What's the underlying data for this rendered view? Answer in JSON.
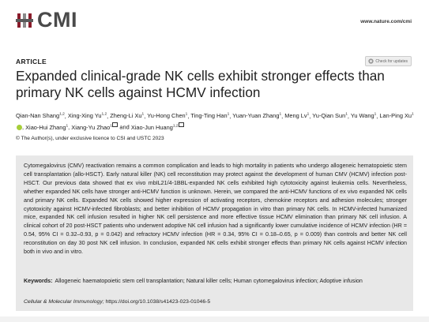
{
  "header": {
    "logo": "CMI",
    "url": "www.nature.com/cmi"
  },
  "article": {
    "label": "ARTICLE",
    "updates_badge": "Check for updates",
    "title": "Expanded clinical-grade NK cells exhibit stronger effects than primary NK cells against HCMV infection",
    "authors": [
      {
        "name": "Qian-Nan Shang",
        "affiliation": "1,2"
      },
      {
        "name": "Xing-Xing Yu",
        "affiliation": "1,2"
      },
      {
        "name": "Zheng-Li Xu",
        "affiliation": "1"
      },
      {
        "name": "Yu-Hong Chen",
        "affiliation": "1"
      },
      {
        "name": "Ting-Ting Han",
        "affiliation": "1"
      },
      {
        "name": "Yuan-Yuan Zhang",
        "affiliation": "1"
      },
      {
        "name": "Meng Lv",
        "affiliation": "1"
      },
      {
        "name": "Yu-Qian Sun",
        "affiliation": "1"
      },
      {
        "name": "Yu Wang",
        "affiliation": "1"
      },
      {
        "name": "Lan-Ping Xu",
        "affiliation": "1",
        "orcid": true
      },
      {
        "name": "Xiao-Hui Zhang",
        "affiliation": "1"
      },
      {
        "name": "Xiang-Yu Zhao",
        "affiliation": "1",
        "corresponding": true
      },
      {
        "name": "Xiao-Jun Huang",
        "affiliation": "1,2",
        "corresponding": true
      }
    ],
    "author_separator": ",",
    "author_conjunction": "and",
    "copyright": "© The Author(s), under exclusive licence to CSI and USTC 2023",
    "abstract": "Cytomegalovirus (CMV) reactivation remains a common complication and leads to high mortality in patients who undergo allogeneic hematopoietic stem cell transplantation (allo-HSCT). Early natural killer (NK) cell reconstitution may protect against the development of human CMV (HCMV) infection post-HSCT. Our previous data showed that ex vivo mbIL21/4-1BBL-expanded NK cells exhibited high cytotoxicity against leukemia cells. Nevertheless, whether expanded NK cells have stronger anti-HCMV function is unknown. Herein, we compared the anti-HCMV functions of ex vivo expanded NK cells and primary NK cells. Expanded NK cells showed higher expression of activating receptors, chemokine receptors and adhesion molecules; stronger cytotoxicity against HCMV-infected fibroblasts; and better inhibition of HCMV propagation in vitro than primary NK cells. In HCMV-infected humanized mice, expanded NK cell infusion resulted in higher NK cell persistence and more effective tissue HCMV elimination than primary NK cell infusion. A clinical cohort of 20 post-HSCT patients who underwent adoptive NK cell infusion had a significantly lower cumulative incidence of HCMV infection (HR = 0.54, 95% CI = 0.32–0.93, p = 0.042) and refractory HCMV infection (HR = 0.34, 95% CI = 0.18–0.65, p = 0.009) than controls and better NK cell reconstitution on day 30 post NK cell infusion. In conclusion, expanded NK cells exhibit stronger effects than primary NK cells against HCMV infection both in vivo and in vitro.",
    "keywords_label": "Keywords:",
    "keywords": "Allogeneic haematopoietic stem cell transplantation; Natural killer cells; Human cytomegalovirus infection; Adoptive infusion",
    "citation": {
      "journal": "Cellular & Molecular Immunology;",
      "doi": "https://doi.org/10.1038/s41423-023-01046-5"
    }
  }
}
